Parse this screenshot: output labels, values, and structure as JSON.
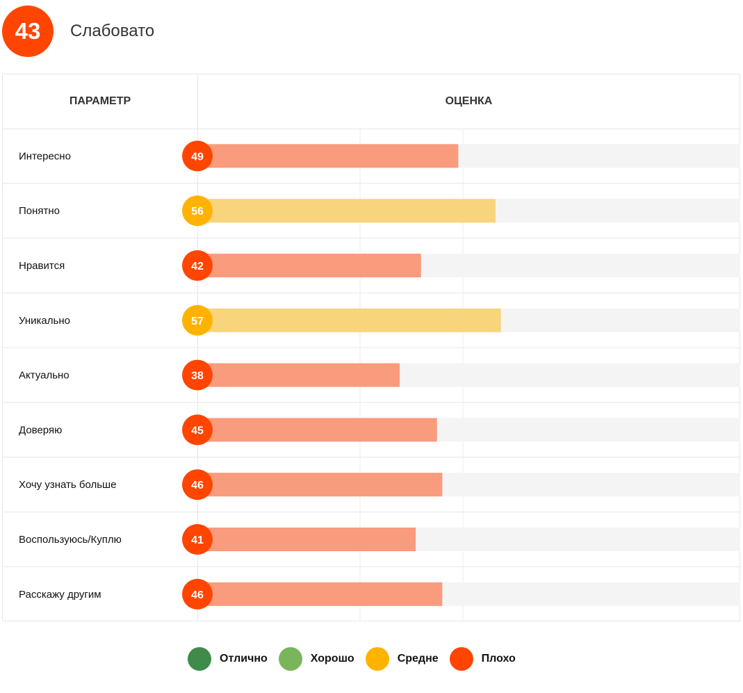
{
  "summary": {
    "score": "43",
    "label": "Слабовато",
    "color": "#ff4500"
  },
  "table": {
    "col_param": "ПАРАМЕТР",
    "col_score": "ОЦЕНКА"
  },
  "chart_data": {
    "type": "bar",
    "orientation": "horizontal",
    "xlim": [
      0,
      100
    ],
    "categories": [
      "Интересно",
      "Понятно",
      "Нравится",
      "Уникально",
      "Актуально",
      "Доверяю",
      "Хочу узнать больше",
      "Воспользуюсь/Куплю",
      "Расскажу другим"
    ],
    "values": [
      49,
      56,
      42,
      57,
      38,
      45,
      46,
      41,
      46
    ],
    "ratings": [
      "Плохо",
      "Средне",
      "Плохо",
      "Средне",
      "Плохо",
      "Плохо",
      "Плохо",
      "Плохо",
      "Плохо"
    ]
  },
  "rating_colors": {
    "Отлично": {
      "badge": "#3e8b4a",
      "bar": "#3e8b4a"
    },
    "Хорошо": {
      "badge": "#7ab55c",
      "bar": "#b7d8a3"
    },
    "Средне": {
      "badge": "#ffb300",
      "bar": "#f8d47c"
    },
    "Плохо": {
      "badge": "#ff4500",
      "bar": "#f99b7d"
    }
  },
  "legend": [
    {
      "label": "Отлично",
      "color": "#3e8b4a"
    },
    {
      "label": "Хорошо",
      "color": "#7ab55c"
    },
    {
      "label": "Средне",
      "color": "#ffb300"
    },
    {
      "label": "Плохо",
      "color": "#ff4500"
    }
  ]
}
